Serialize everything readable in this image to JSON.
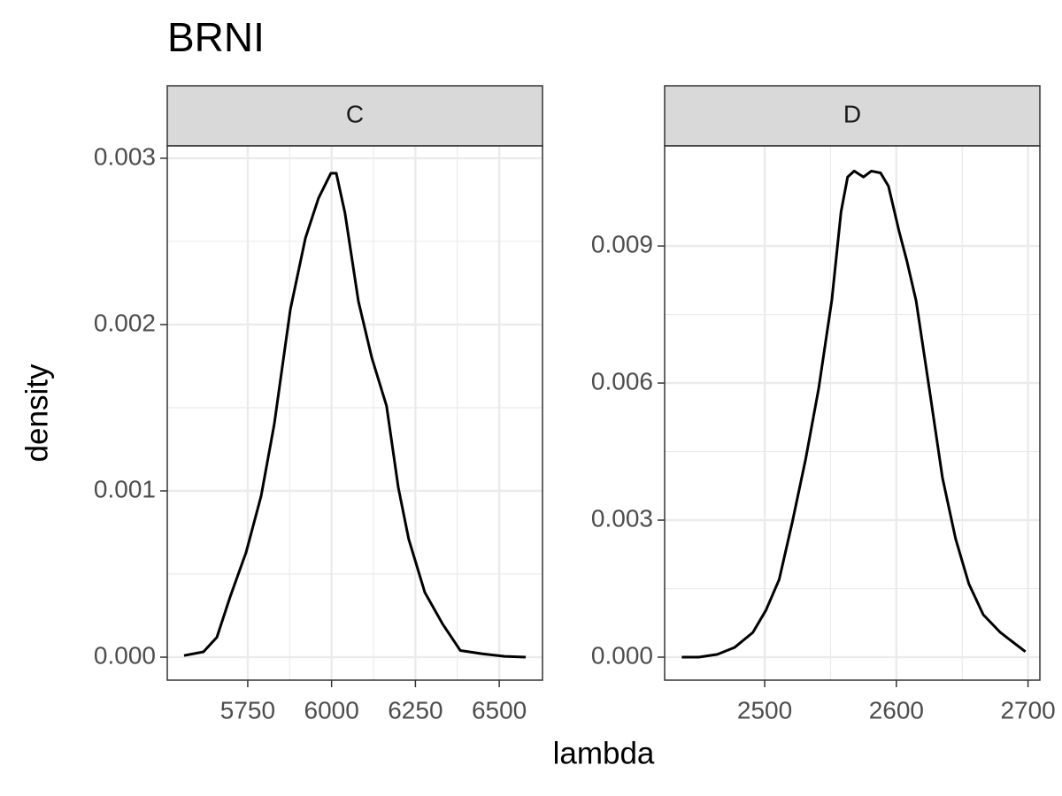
{
  "title": "BRNI",
  "x_label": "lambda",
  "y_label": "density",
  "chart_data": [
    {
      "type": "line",
      "facet": "C",
      "color": "#000000",
      "grid": true,
      "x": [
        5560,
        5618,
        5658,
        5697,
        5745,
        5790,
        5829,
        5877,
        5922,
        5961,
        5998,
        6014,
        6040,
        6080,
        6120,
        6164,
        6199,
        6230,
        6278,
        6331,
        6384,
        6450,
        6516,
        6579
      ],
      "values": [
        1e-05,
        3.2e-05,
        0.00012,
        0.00036,
        0.00063,
        0.00097,
        0.0014,
        0.00209,
        0.00252,
        0.00276,
        0.00291,
        0.00291,
        0.00267,
        0.00214,
        0.0018,
        0.00151,
        0.00102,
        0.00071,
        0.00039,
        0.0002,
        4e-05,
        2e-05,
        5e-06,
        0.0
      ],
      "xlim": [
        5510,
        6629
      ],
      "ylim": [
        -0.000138,
        0.003074
      ],
      "xticks": [
        5750,
        6000,
        6250,
        6500
      ],
      "yticks": [
        {
          "value": 0,
          "label": "0.000"
        },
        0.001,
        0.002,
        0.003
      ]
    },
    {
      "type": "line",
      "facet": "D",
      "color": "#000000",
      "grid": true,
      "x": [
        2437,
        2450,
        2464,
        2477,
        2491,
        2501,
        2511,
        2521,
        2531,
        2541,
        2551,
        2558,
        2563,
        2568,
        2575,
        2581,
        2588,
        2594,
        2602,
        2608,
        2615,
        2625,
        2635,
        2645,
        2655,
        2666,
        2679,
        2698
      ],
      "values": [
        0.0,
        0.0,
        6e-05,
        0.00021,
        0.00054,
        0.00103,
        0.0017,
        0.00296,
        0.00432,
        0.00588,
        0.00782,
        0.00975,
        0.01051,
        0.01064,
        0.01051,
        0.01064,
        0.0106,
        0.01031,
        0.00933,
        0.00867,
        0.0078,
        0.00588,
        0.00393,
        0.00259,
        0.00161,
        0.00093,
        0.00054,
        0.00012
      ],
      "xlim": [
        2424,
        2709
      ],
      "ylim": [
        -0.000503,
        0.01119
      ],
      "xticks": [
        2500,
        2600,
        2700
      ],
      "yticks": [
        {
          "value": 0,
          "label": "0.000"
        },
        0.003,
        0.006,
        0.009
      ]
    }
  ]
}
